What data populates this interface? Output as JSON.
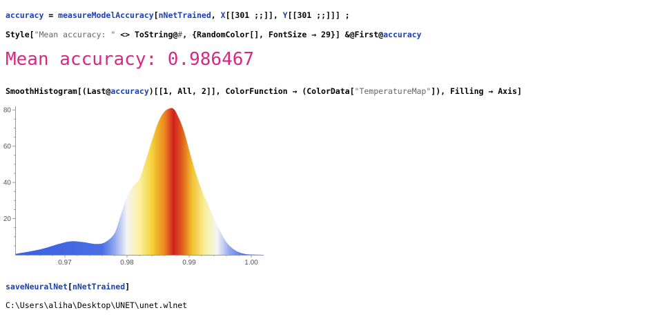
{
  "cells": {
    "in1": {
      "var": "accuracy",
      "eq": " = ",
      "fn": "measureModelAccuracy",
      "open": "[",
      "arg1": "nNetTrained",
      "c1": ", ",
      "x": "X",
      "xidx": "[[301 ;;]]",
      "c2": ", ",
      "y": "Y",
      "yidx": "[[301 ;;]]",
      "close": "] ;"
    },
    "in2": {
      "fn": "Style",
      "open": "[",
      "str": "\"Mean accuracy: \"",
      "join": " <> ",
      "ts": "ToString",
      "at": "@",
      "slot": "#",
      "rest1": ", {",
      "rc": "RandomColor",
      "rc2": "[], ",
      "fs": "FontSize",
      "arrow": " → 29}] &",
      "at2": "@",
      "first": "First",
      "at3": "@",
      "acc": "accuracy"
    },
    "out2": {
      "text": "Mean accuracy: 0.986467",
      "color": "#d42a86"
    },
    "in3": {
      "fn": "SmoothHistogram",
      "p1": "[(",
      "last": "Last",
      "at": "@",
      "acc": "accuracy",
      "p2": ")[[1, All, 2]], ",
      "cf": "ColorFunction",
      "p3": " → (",
      "cd": "ColorData",
      "p4": "[",
      "str": "\"TemperatureMap\"",
      "p5": "]), ",
      "fill": "Filling",
      "p6": " → ",
      "axis": "Axis",
      "p7": "]"
    },
    "in4": {
      "fn": "saveNeuralNet",
      "open": "[",
      "arg": "nNetTrained",
      "close": "]"
    },
    "out4": {
      "text": "C:\\Users\\aliha\\Desktop\\UNET\\unet.wlnet"
    }
  },
  "chart_data": {
    "type": "area",
    "color_function": "TemperatureMap",
    "filling": "Axis",
    "xlim": [
      0.962,
      1.002
    ],
    "ylim": [
      0,
      82
    ],
    "x_ticks": [
      0.97,
      0.98,
      0.99,
      1.0
    ],
    "x_tick_labels": [
      "0.97",
      "0.98",
      "0.99",
      "1.00"
    ],
    "y_ticks": [
      20,
      40,
      60,
      80
    ],
    "y_tick_labels": [
      "20",
      "40",
      "60",
      "80"
    ],
    "x": [
      0.962,
      0.966,
      0.969,
      0.971,
      0.973,
      0.975,
      0.9765,
      0.978,
      0.979,
      0.98,
      0.981,
      0.982,
      0.983,
      0.984,
      0.985,
      0.986,
      0.987,
      0.9875,
      0.988,
      0.989,
      0.99,
      0.991,
      0.992,
      0.993,
      0.994,
      0.995,
      0.996,
      0.997,
      0.998,
      0.999,
      1.0,
      1.002
    ],
    "y": [
      0.5,
      3,
      6,
      7.5,
      7,
      6,
      7,
      12,
      22,
      32,
      38,
      42,
      52,
      63,
      73,
      79,
      81,
      80.5,
      78,
      70,
      58,
      46,
      36,
      28,
      20,
      13,
      7,
      3.5,
      1.5,
      0.5,
      0.2,
      0
    ]
  }
}
